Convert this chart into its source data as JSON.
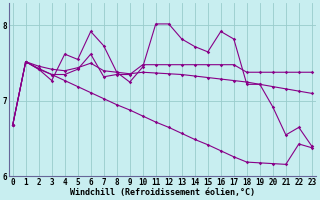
{
  "bg_color": "#c8eef0",
  "line_color": "#880088",
  "grid_color": "#99cccc",
  "spine_color": "#666699",
  "xlim_min": 0,
  "xlim_max": 23,
  "ylim_min": 6.0,
  "ylim_max": 8.3,
  "yticks": [
    6,
    7,
    8
  ],
  "xticks": [
    0,
    1,
    2,
    3,
    4,
    5,
    6,
    7,
    8,
    9,
    10,
    11,
    12,
    13,
    14,
    15,
    16,
    17,
    18,
    19,
    20,
    21,
    22,
    23
  ],
  "xlabel": "Windchill (Refroidissement éolien,°C)",
  "tick_fontsize": 5.5,
  "label_fontsize": 6.0,
  "series": [
    [
      6.68,
      7.52,
      7.42,
      7.27,
      7.62,
      7.55,
      7.92,
      7.73,
      7.38,
      7.25,
      7.45,
      8.02,
      8.02,
      7.82,
      7.72,
      7.65,
      7.92,
      7.82,
      7.22,
      7.22,
      6.92,
      6.55,
      6.65,
      6.4
    ],
    [
      6.68,
      7.52,
      7.42,
      7.35,
      7.35,
      7.42,
      7.62,
      7.32,
      7.35,
      7.35,
      7.48,
      7.48,
      7.48,
      7.48,
      7.48,
      7.48,
      7.48,
      7.48,
      7.38,
      7.38,
      7.38,
      7.38,
      7.38,
      7.38
    ],
    [
      6.68,
      7.52,
      7.46,
      7.42,
      7.4,
      7.44,
      7.5,
      7.4,
      7.38,
      7.36,
      7.38,
      7.37,
      7.36,
      7.35,
      7.33,
      7.31,
      7.29,
      7.27,
      7.25,
      7.22,
      7.19,
      7.16,
      7.13,
      7.1
    ],
    [
      6.68,
      7.52,
      7.43,
      7.35,
      7.27,
      7.19,
      7.11,
      7.03,
      6.95,
      6.88,
      6.8,
      6.72,
      6.65,
      6.57,
      6.49,
      6.42,
      6.34,
      6.26,
      6.19,
      6.18,
      6.17,
      6.16,
      6.43,
      6.38
    ]
  ]
}
